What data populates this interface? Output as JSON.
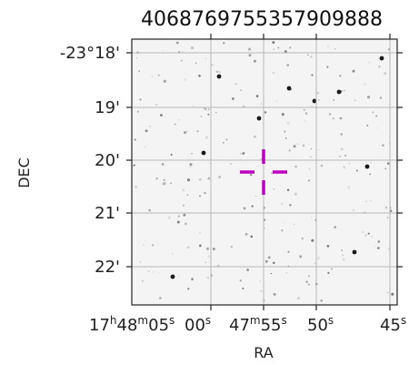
{
  "chart_data": {
    "type": "scatter",
    "title": "4068769755357909888",
    "xlabel": "RA",
    "ylabel": "DEC",
    "grid": true,
    "x_ticks": [
      {
        "label_main": "17",
        "sup1": "h",
        "label_2": "48",
        "sup2": "m",
        "label_3": "05",
        "sup3": "s"
      },
      {
        "label_main": "00",
        "sup1": "s"
      },
      {
        "label_main": "47",
        "sup1": "m",
        "label_2": "55",
        "sup2": "s"
      },
      {
        "label_main": "50",
        "sup1": "s"
      },
      {
        "label_main": "45",
        "sup1": "s"
      }
    ],
    "y_ticks": [
      "-23°18'",
      "19'",
      "20'",
      "21'",
      "22'"
    ],
    "marker": {
      "type": "cross",
      "color": "#c000c0"
    }
  }
}
